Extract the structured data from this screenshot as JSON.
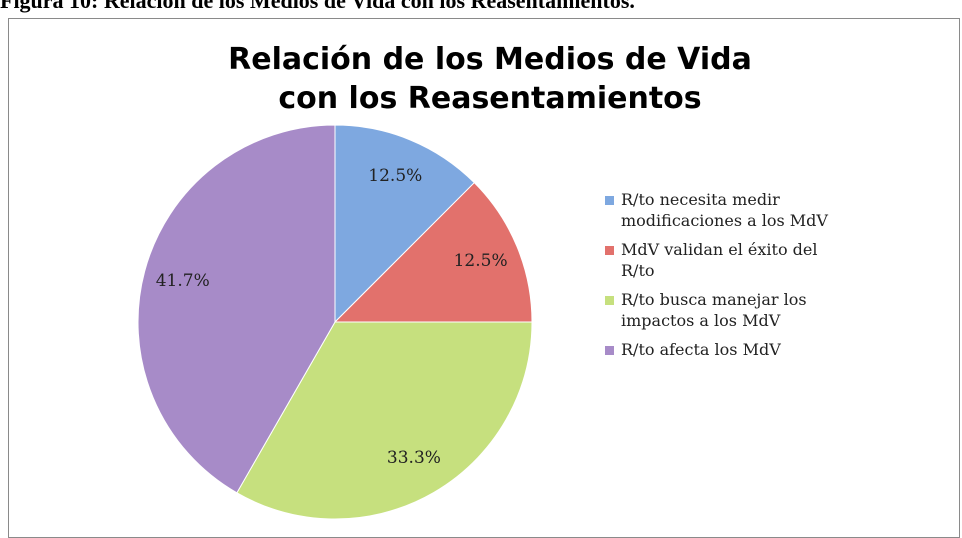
{
  "caption": "Figura 10: Relación de los Medios de Vida con los Reasentamientos.",
  "chart_data": {
    "type": "pie",
    "title": "Relación de los Medios de Vida con los Reasentamientos",
    "categories": [
      "R/to necesita medir modificaciones a los MdV",
      "MdV validan el éxito del R/to",
      "R/to busca manejar los impactos a los MdV",
      "R/to afecta los MdV"
    ],
    "values": [
      12.5,
      12.5,
      33.3,
      41.7
    ],
    "value_labels": [
      "12.5%",
      "12.5%",
      "33.3%",
      "41.7%"
    ],
    "colors": [
      "#7ea8e0",
      "#e2716c",
      "#c6e07e",
      "#a78bc8"
    ],
    "legend": "right"
  }
}
